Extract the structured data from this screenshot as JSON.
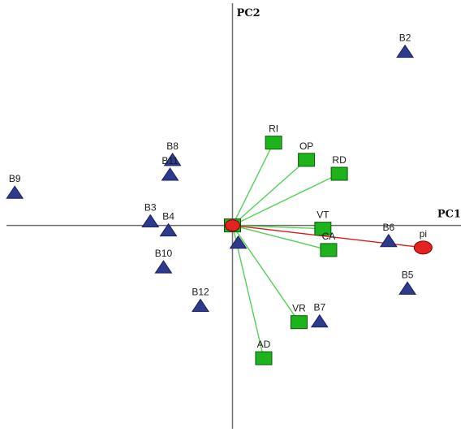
{
  "chart_data": {
    "type": "scatter",
    "title": "",
    "xlabel": "PC1",
    "ylabel": "PC2",
    "xlim": [
      -283,
      283
    ],
    "ylim": [
      -252,
      275
    ],
    "origin": {
      "x": 0,
      "y": 0
    },
    "colors": {
      "object_fill": "#2e3a8c",
      "object_stroke": "#1a2060",
      "variable_fill": "#1db31d",
      "variable_stroke": "#0b5a0b",
      "variable_vector": "#55d055",
      "supplementary_fill": "#e52222",
      "supplementary_vector": "#e01818",
      "axis": "#6e6e6e"
    },
    "objects": [
      {
        "label": "B2",
        "x": 210,
        "y": 212
      },
      {
        "label": "B8",
        "x": -73,
        "y": 80
      },
      {
        "label": "B11",
        "x": -76,
        "y": 62
      },
      {
        "label": "B9",
        "x": -265,
        "y": 40
      },
      {
        "label": "B3",
        "x": -100,
        "y": 5
      },
      {
        "label": "B4",
        "x": -78,
        "y": -6
      },
      {
        "label": "B10",
        "x": -84,
        "y": -51
      },
      {
        "label": "B12",
        "x": -39,
        "y": -98
      },
      {
        "label": "B6",
        "x": 190,
        "y": -19
      },
      {
        "label": "B5",
        "x": 213,
        "y": -77
      },
      {
        "label": "B7",
        "x": 106,
        "y": -117
      },
      {
        "label": "",
        "x": 7,
        "y": -21
      }
    ],
    "variables": [
      {
        "label": "RI",
        "x": 50,
        "y": 101
      },
      {
        "label": "OP",
        "x": 90,
        "y": 80
      },
      {
        "label": "RD",
        "x": 130,
        "y": 63
      },
      {
        "label": "VT",
        "x": 110,
        "y": -4
      },
      {
        "label": "CA",
        "x": 117,
        "y": -30
      },
      {
        "label": "VR",
        "x": 81,
        "y": -118
      },
      {
        "label": "AD",
        "x": 38,
        "y": -162
      }
    ],
    "supplementary": [
      {
        "label": "pi",
        "x": 232,
        "y": -27
      }
    ],
    "grid": false,
    "legend": "none"
  }
}
